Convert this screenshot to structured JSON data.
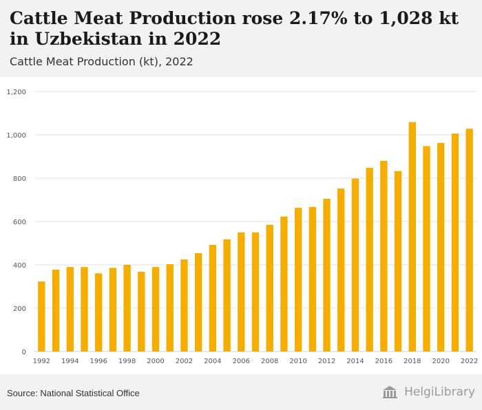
{
  "header": {
    "title": "Cattle Meat Production rose 2.17% to 1,028 kt in Uzbekistan in 2022",
    "subtitle": "Cattle Meat Production (kt), 2022"
  },
  "footer": {
    "source": "Source: National Statistical Office",
    "brand": "HelgiLibrary"
  },
  "colors": {
    "bar": "#f5ad00",
    "grid": "#e2e2e2",
    "axis_text": "#555555"
  },
  "chart_data": {
    "type": "bar",
    "categories": [
      "1992",
      "1993",
      "1994",
      "1995",
      "1996",
      "1997",
      "1998",
      "1999",
      "2000",
      "2001",
      "2002",
      "2003",
      "2004",
      "2005",
      "2006",
      "2007",
      "2008",
      "2009",
      "2010",
      "2011",
      "2012",
      "2013",
      "2014",
      "2015",
      "2016",
      "2017",
      "2018",
      "2019",
      "2020",
      "2021",
      "2022"
    ],
    "values": [
      323,
      378,
      390,
      390,
      361,
      386,
      400,
      368,
      390,
      403,
      425,
      454,
      492,
      518,
      550,
      550,
      585,
      623,
      663,
      667,
      705,
      752,
      798,
      848,
      880,
      833,
      1059,
      948,
      963,
      1006,
      1028
    ],
    "x_tick_labels": [
      "1992",
      "1994",
      "1996",
      "1998",
      "2000",
      "2002",
      "2004",
      "2006",
      "2008",
      "2010",
      "2012",
      "2014",
      "2016",
      "2018",
      "2020",
      "2022"
    ],
    "y_ticks": [
      0,
      200,
      400,
      600,
      800,
      1000,
      1200
    ],
    "y_tick_labels": [
      "0",
      "200",
      "400",
      "600",
      "800",
      "1,000",
      "1,200"
    ],
    "ylim": [
      0,
      1200
    ],
    "grid": true,
    "xlabel": "",
    "ylabel": ""
  }
}
